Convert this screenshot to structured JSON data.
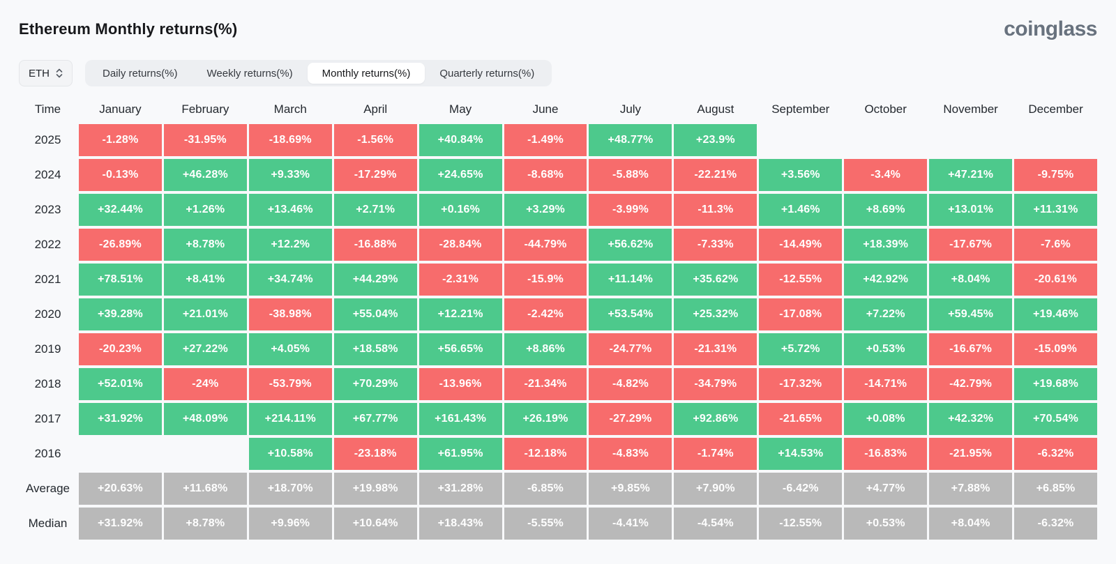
{
  "header": {
    "title": "Ethereum Monthly returns(%)",
    "logo": "coinglass"
  },
  "controls": {
    "symbol": "ETH",
    "tabs": [
      {
        "label": "Daily returns(%)",
        "active": false
      },
      {
        "label": "Weekly returns(%)",
        "active": false
      },
      {
        "label": "Monthly returns(%)",
        "active": true
      },
      {
        "label": "Quarterly returns(%)",
        "active": false
      }
    ]
  },
  "colors": {
    "positive": "#4dc98c",
    "negative": "#f76c6c",
    "summary": "#b9b9b9"
  },
  "table": {
    "corner_label": "Time",
    "months": [
      "January",
      "February",
      "March",
      "April",
      "May",
      "June",
      "July",
      "August",
      "September",
      "October",
      "November",
      "December"
    ],
    "rows": [
      {
        "label": "2025",
        "type": "year",
        "values": [
          "-1.28%",
          "-31.95%",
          "-18.69%",
          "-1.56%",
          "+40.84%",
          "-1.49%",
          "+48.77%",
          "+23.9%",
          "",
          "",
          "",
          ""
        ]
      },
      {
        "label": "2024",
        "type": "year",
        "values": [
          "-0.13%",
          "+46.28%",
          "+9.33%",
          "-17.29%",
          "+24.65%",
          "-8.68%",
          "-5.88%",
          "-22.21%",
          "+3.56%",
          "-3.4%",
          "+47.21%",
          "-9.75%"
        ]
      },
      {
        "label": "2023",
        "type": "year",
        "values": [
          "+32.44%",
          "+1.26%",
          "+13.46%",
          "+2.71%",
          "+0.16%",
          "+3.29%",
          "-3.99%",
          "-11.3%",
          "+1.46%",
          "+8.69%",
          "+13.01%",
          "+11.31%"
        ]
      },
      {
        "label": "2022",
        "type": "year",
        "values": [
          "-26.89%",
          "+8.78%",
          "+12.2%",
          "-16.88%",
          "-28.84%",
          "-44.79%",
          "+56.62%",
          "-7.33%",
          "-14.49%",
          "+18.39%",
          "-17.67%",
          "-7.6%"
        ]
      },
      {
        "label": "2021",
        "type": "year",
        "values": [
          "+78.51%",
          "+8.41%",
          "+34.74%",
          "+44.29%",
          "-2.31%",
          "-15.9%",
          "+11.14%",
          "+35.62%",
          "-12.55%",
          "+42.92%",
          "+8.04%",
          "-20.61%"
        ]
      },
      {
        "label": "2020",
        "type": "year",
        "values": [
          "+39.28%",
          "+21.01%",
          "-38.98%",
          "+55.04%",
          "+12.21%",
          "-2.42%",
          "+53.54%",
          "+25.32%",
          "-17.08%",
          "+7.22%",
          "+59.45%",
          "+19.46%"
        ]
      },
      {
        "label": "2019",
        "type": "year",
        "values": [
          "-20.23%",
          "+27.22%",
          "+4.05%",
          "+18.58%",
          "+56.65%",
          "+8.86%",
          "-24.77%",
          "-21.31%",
          "+5.72%",
          "+0.53%",
          "-16.67%",
          "-15.09%"
        ]
      },
      {
        "label": "2018",
        "type": "year",
        "values": [
          "+52.01%",
          "-24%",
          "-53.79%",
          "+70.29%",
          "-13.96%",
          "-21.34%",
          "-4.82%",
          "-34.79%",
          "-17.32%",
          "-14.71%",
          "-42.79%",
          "+19.68%"
        ]
      },
      {
        "label": "2017",
        "type": "year",
        "values": [
          "+31.92%",
          "+48.09%",
          "+214.11%",
          "+67.77%",
          "+161.43%",
          "+26.19%",
          "-27.29%",
          "+92.86%",
          "-21.65%",
          "+0.08%",
          "+42.32%",
          "+70.54%"
        ]
      },
      {
        "label": "2016",
        "type": "year",
        "values": [
          "",
          "",
          "+10.58%",
          "-23.18%",
          "+61.95%",
          "-12.18%",
          "-4.83%",
          "-1.74%",
          "+14.53%",
          "-16.83%",
          "-21.95%",
          "-6.32%"
        ]
      },
      {
        "label": "Average",
        "type": "summary",
        "values": [
          "+20.63%",
          "+11.68%",
          "+18.70%",
          "+19.98%",
          "+31.28%",
          "-6.85%",
          "+9.85%",
          "+7.90%",
          "-6.42%",
          "+4.77%",
          "+7.88%",
          "+6.85%"
        ]
      },
      {
        "label": "Median",
        "type": "summary",
        "values": [
          "+31.92%",
          "+8.78%",
          "+9.96%",
          "+10.64%",
          "+18.43%",
          "-5.55%",
          "-4.41%",
          "-4.54%",
          "-12.55%",
          "+0.53%",
          "+8.04%",
          "-6.32%"
        ]
      }
    ]
  }
}
